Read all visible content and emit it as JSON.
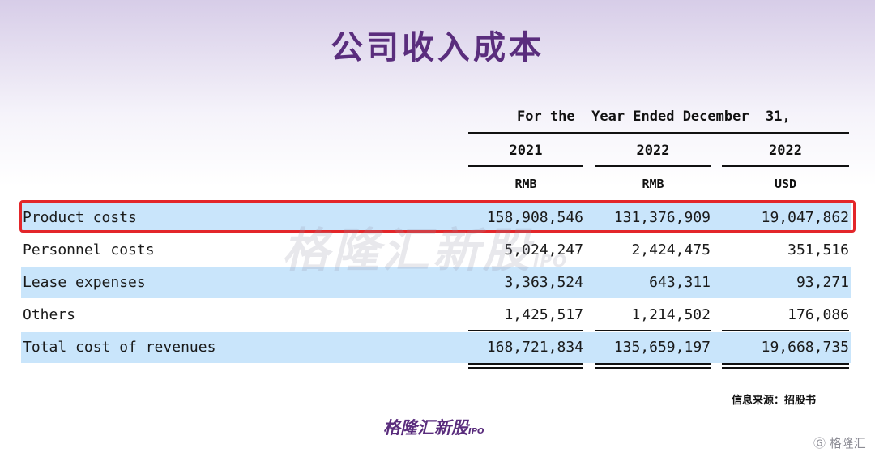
{
  "title": "公司收入成本",
  "table": {
    "period_caption": "For the  Year Ended December  31,",
    "years": [
      "2021",
      "2022",
      "2022"
    ],
    "currencies": [
      "RMB",
      "RMB",
      "USD"
    ],
    "rows": [
      {
        "label": "Product costs",
        "values": [
          "158,908,546",
          "131,376,909",
          "19,047,862"
        ]
      },
      {
        "label": "Personnel costs",
        "values": [
          "5,024,247",
          "2,424,475",
          "351,516"
        ]
      },
      {
        "label": "Lease expenses",
        "values": [
          "3,363,524",
          "643,311",
          "93,271"
        ]
      },
      {
        "label": "Others",
        "values": [
          "1,425,517",
          "1,214,502",
          "176,086"
        ]
      },
      {
        "label": "Total cost of revenues",
        "values": [
          "168,721,834",
          "135,659,197",
          "19,668,735"
        ]
      }
    ]
  },
  "watermark": {
    "text": "格隆汇新股",
    "suffix": "IPO"
  },
  "source": "信息来源：招股书",
  "brand": {
    "text": "格隆汇新股",
    "suffix": "IPO"
  },
  "corner_mark": "Ⓖ 格隆汇"
}
